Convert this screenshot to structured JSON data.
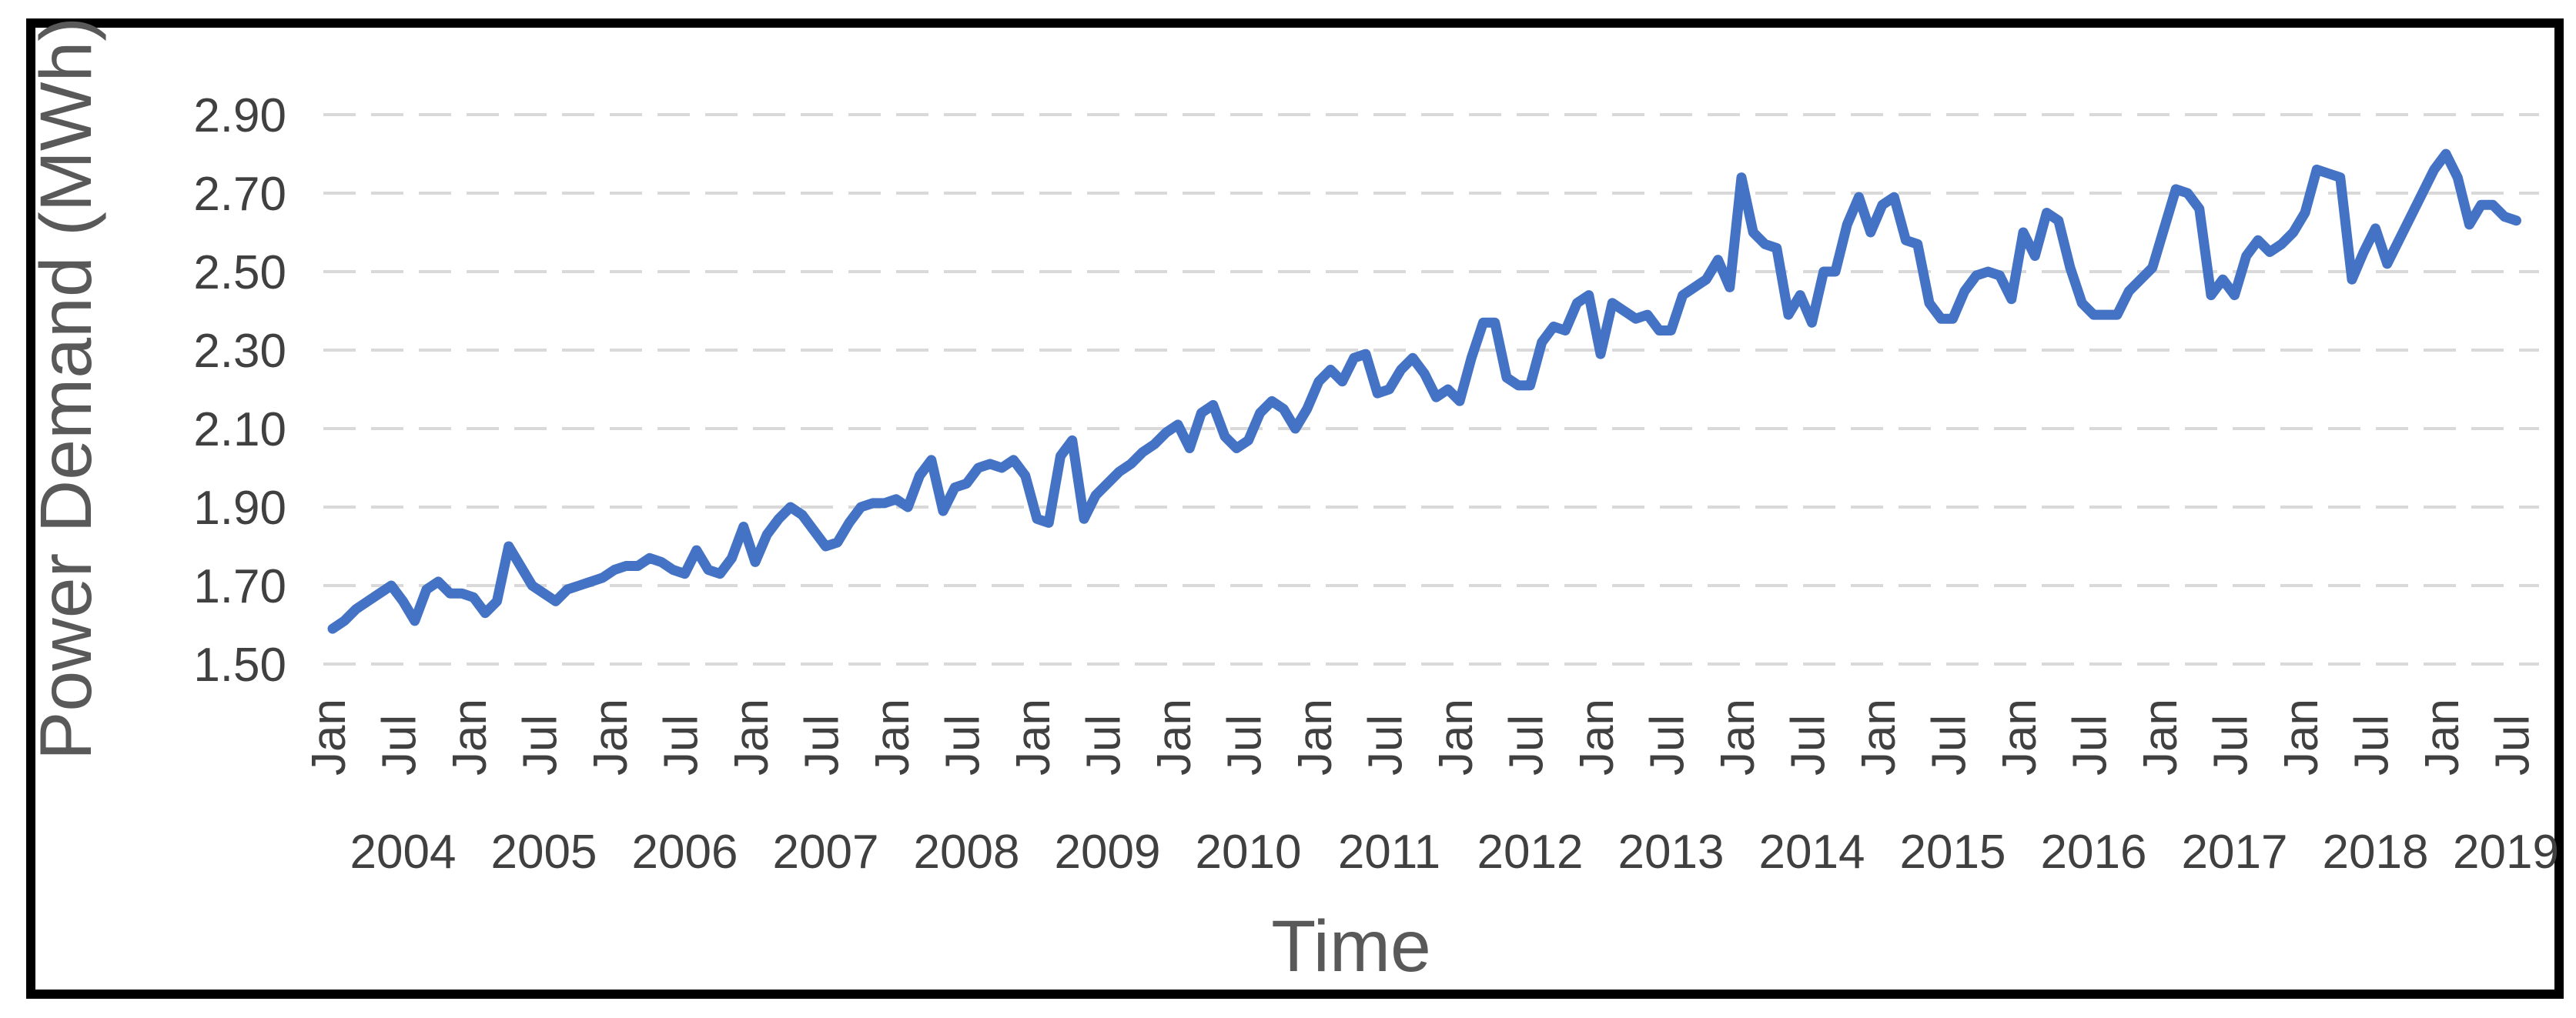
{
  "figure": {
    "background_color": "#FFFFFF",
    "border_color": "#000000"
  },
  "chart_data": {
    "type": "line",
    "title": "",
    "xlabel": "Time",
    "ylabel": "Power Demand (MWh)",
    "legend": "none",
    "grid": {
      "on": true,
      "color": "#D9D9D9",
      "style": "dashed"
    },
    "line_color": "#4472C4",
    "tick_label_color": "#404040",
    "axis_title_color": "#595959",
    "ylim": [
      1.5,
      2.9
    ],
    "yticks": [
      {
        "label": "2.90",
        "value": 2.9
      },
      {
        "label": "2.70",
        "value": 2.7
      },
      {
        "label": "2.50",
        "value": 2.5
      },
      {
        "label": "2.30",
        "value": 2.3
      },
      {
        "label": "2.10",
        "value": 2.1
      },
      {
        "label": "1.90",
        "value": 1.9
      },
      {
        "label": "1.70",
        "value": 1.7
      },
      {
        "label": "1.50",
        "value": 1.5
      }
    ],
    "x_tick_month_labels": [
      "Jan",
      "Jul"
    ],
    "year_labels": [
      "2004",
      "2005",
      "2006",
      "2007",
      "2008",
      "2009",
      "2010",
      "2011",
      "2012",
      "2013",
      "2014",
      "2015",
      "2016",
      "2017",
      "2018",
      "2019"
    ],
    "x_start": "2004-01",
    "x_end": "2019-07",
    "frequency": "monthly",
    "series": {
      "name": "Power Demand",
      "values_by_year": {
        "2004": [
          1.59,
          1.61,
          1.64,
          1.66,
          1.68,
          1.7,
          1.66,
          1.61,
          1.69,
          1.71,
          1.68,
          1.68
        ],
        "2005": [
          1.67,
          1.63,
          1.66,
          1.8,
          1.75,
          1.7,
          1.68,
          1.66,
          1.69,
          1.7,
          1.71,
          1.72
        ],
        "2006": [
          1.74,
          1.75,
          1.75,
          1.77,
          1.76,
          1.74,
          1.73,
          1.79,
          1.74,
          1.73,
          1.77,
          1.85
        ],
        "2007": [
          1.76,
          1.83,
          1.87,
          1.9,
          1.88,
          1.84,
          1.8,
          1.81,
          1.86,
          1.9,
          1.91,
          1.91
        ],
        "2008": [
          1.92,
          1.9,
          1.98,
          2.02,
          1.89,
          1.95,
          1.96,
          2.0,
          2.01,
          2.0,
          2.02,
          1.98
        ],
        "2009": [
          1.87,
          1.86,
          2.03,
          2.07,
          1.87,
          1.93,
          1.96,
          1.99,
          2.01,
          2.04,
          2.06,
          2.09
        ],
        "2010": [
          2.11,
          2.05,
          2.14,
          2.16,
          2.08,
          2.05,
          2.07,
          2.14,
          2.17,
          2.15,
          2.1,
          2.15
        ],
        "2011": [
          2.22,
          2.25,
          2.22,
          2.28,
          2.29,
          2.19,
          2.2,
          2.25,
          2.28,
          2.24,
          2.18,
          2.2
        ],
        "2012": [
          2.17,
          2.28,
          2.37,
          2.37,
          2.23,
          2.21,
          2.21,
          2.32,
          2.36,
          2.35,
          2.42,
          2.44
        ],
        "2013": [
          2.29,
          2.42,
          2.4,
          2.38,
          2.39,
          2.35,
          2.35,
          2.44,
          2.46,
          2.48,
          2.53,
          2.46
        ],
        "2014": [
          2.74,
          2.6,
          2.57,
          2.56,
          2.39,
          2.44,
          2.37,
          2.5,
          2.5,
          2.62,
          2.69,
          2.6
        ],
        "2015": [
          2.67,
          2.69,
          2.58,
          2.57,
          2.42,
          2.38,
          2.38,
          2.45,
          2.49,
          2.5,
          2.49,
          2.43
        ],
        "2016": [
          2.6,
          2.54,
          2.65,
          2.63,
          2.51,
          2.42,
          2.39,
          2.39,
          2.39,
          2.45,
          2.48,
          2.51
        ],
        "2017": [
          2.61,
          2.71,
          2.7,
          2.66,
          2.44,
          2.48,
          2.44,
          2.54,
          2.58,
          2.55,
          2.57,
          2.6
        ],
        "2018": [
          2.65,
          2.76,
          2.75,
          2.74,
          2.48,
          2.55,
          2.61,
          2.52,
          2.58,
          2.64,
          2.7,
          2.76
        ],
        "2019": [
          2.8,
          2.74,
          2.62,
          2.67,
          2.67,
          2.64,
          2.63
        ]
      }
    }
  }
}
